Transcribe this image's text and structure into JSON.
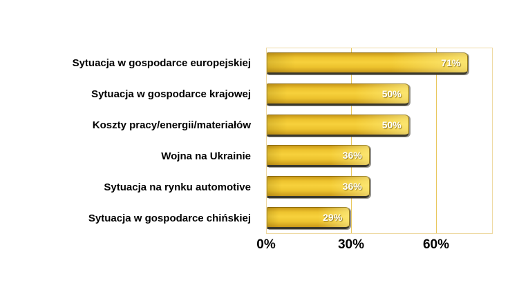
{
  "chart_data": {
    "type": "bar",
    "orientation": "horizontal",
    "title": "",
    "xlabel": "",
    "ylabel": "",
    "categories": [
      "Sytuacja w gospodarce europejskiej",
      "Sytuacja w gospodarce krajowej",
      "Koszty pracy/energii/materiałów",
      "Wojna na Ukrainie",
      "Sytuacja na rynku automotive",
      "Sytuacja w gospodarce chińskiej"
    ],
    "values": [
      71,
      50,
      50,
      36,
      36,
      29
    ],
    "value_labels": [
      "71%",
      "50%",
      "50%",
      "36%",
      "36%",
      "29%"
    ],
    "xlim": [
      0,
      80
    ],
    "xticks": [
      {
        "value": 0,
        "label": "0%"
      },
      {
        "value": 30,
        "label": "30%"
      },
      {
        "value": 60,
        "label": "60%"
      }
    ],
    "grid": "vertical",
    "legend": "none",
    "colors": {
      "background": "#FFFFFF",
      "bar_fill": "#EDC32E",
      "bar_fill_light": "#F7D13C",
      "bar_fill_dark": "#C9991A",
      "bar_shadow": "#3A382C",
      "gridline": "#E8C75C",
      "plot_border": "#EED9A2",
      "value_label": "#FFFFFF",
      "category_label": "#000000",
      "tick_label": "#000000"
    }
  }
}
